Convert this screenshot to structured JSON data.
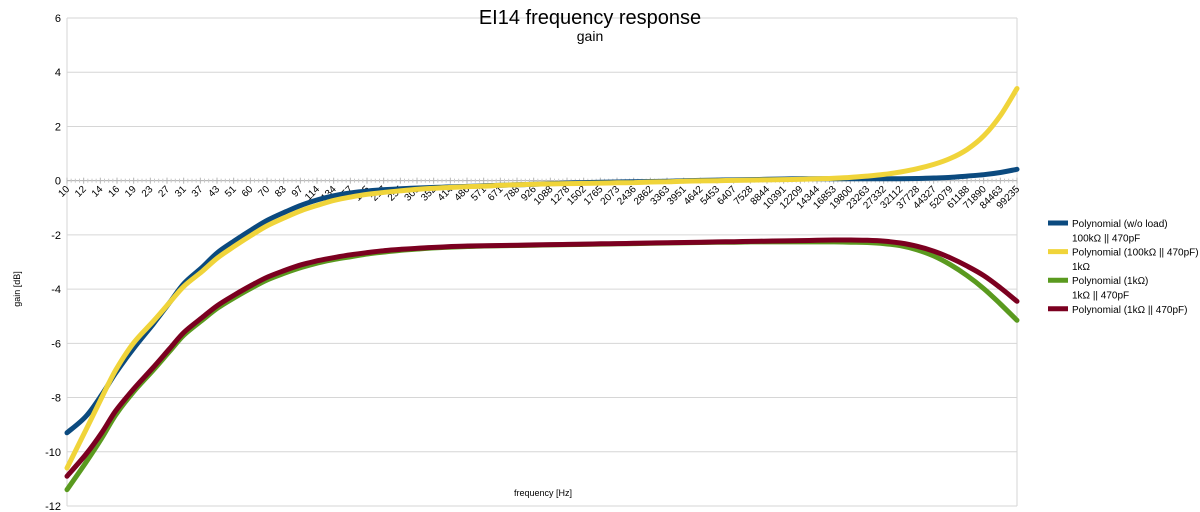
{
  "chart_data": {
    "type": "line",
    "title": "EI14 frequency response",
    "subtitle": "gain",
    "xlabel": "frequency [Hz]",
    "ylabel": "gain [dB]",
    "ylim": [
      -12,
      6
    ],
    "yticks": [
      6,
      4,
      2,
      0,
      -2,
      -4,
      -6,
      -8,
      -10,
      -12
    ],
    "x_scale": "log",
    "grid": true,
    "legend_position": "right",
    "categories": [
      "10",
      "12",
      "14",
      "16",
      "19",
      "23",
      "27",
      "31",
      "37",
      "43",
      "51",
      "60",
      "70",
      "83",
      "97",
      "114",
      "134",
      "157",
      "185",
      "217",
      "255",
      "300",
      "352",
      "414",
      "486",
      "571",
      "671",
      "788",
      "926",
      "1088",
      "1278",
      "1502",
      "1765",
      "2073",
      "2436",
      "2862",
      "3363",
      "3951",
      "4642",
      "5453",
      "6407",
      "7528",
      "8844",
      "10391",
      "12209",
      "14344",
      "16853",
      "19800",
      "23263",
      "27332",
      "32112",
      "37728",
      "44327",
      "52079",
      "61188",
      "71890",
      "84463",
      "99235"
    ],
    "legend": [
      {
        "label": "Polynomial (w/o load)",
        "color": "#0b4a7f",
        "kind": "line"
      },
      {
        "label": "100kΩ || 470pF",
        "color": "",
        "kind": "text"
      },
      {
        "label": "Polynomial (100kΩ || 470pF)",
        "color": "#f0d43a",
        "kind": "line"
      },
      {
        "label": "1kΩ",
        "color": "",
        "kind": "text"
      },
      {
        "label": "Polynomial (1kΩ)",
        "color": "#5a9a1f",
        "kind": "line"
      },
      {
        "label": "1kΩ || 470pF",
        "color": "",
        "kind": "text"
      },
      {
        "label": "Polynomial (1kΩ || 470pF)",
        "color": "#7b0020",
        "kind": "line"
      }
    ],
    "series": [
      {
        "name": "Polynomial (w/o load)",
        "color": "#0b4a7f",
        "points": [
          [
            10,
            -9.3
          ],
          [
            12,
            -8.7
          ],
          [
            14,
            -7.9
          ],
          [
            16,
            -7.1
          ],
          [
            19,
            -6.2
          ],
          [
            23,
            -5.3
          ],
          [
            27,
            -4.5
          ],
          [
            31,
            -3.8
          ],
          [
            37,
            -3.2
          ],
          [
            43,
            -2.65
          ],
          [
            51,
            -2.2
          ],
          [
            60,
            -1.8
          ],
          [
            70,
            -1.45
          ],
          [
            83,
            -1.15
          ],
          [
            97,
            -0.9
          ],
          [
            114,
            -0.7
          ],
          [
            134,
            -0.55
          ],
          [
            157,
            -0.45
          ],
          [
            185,
            -0.38
          ],
          [
            217,
            -0.33
          ],
          [
            255,
            -0.3
          ],
          [
            300,
            -0.27
          ],
          [
            352,
            -0.25
          ],
          [
            414,
            -0.23
          ],
          [
            486,
            -0.21
          ],
          [
            571,
            -0.19
          ],
          [
            671,
            -0.17
          ],
          [
            788,
            -0.15
          ],
          [
            926,
            -0.13
          ],
          [
            1088,
            -0.11
          ],
          [
            1278,
            -0.09
          ],
          [
            1502,
            -0.07
          ],
          [
            1765,
            -0.06
          ],
          [
            2073,
            -0.05
          ],
          [
            2436,
            -0.04
          ],
          [
            2862,
            -0.03
          ],
          [
            3363,
            -0.02
          ],
          [
            3951,
            0.0
          ],
          [
            4642,
            0.01
          ],
          [
            5453,
            0.02
          ],
          [
            6407,
            0.03
          ],
          [
            7528,
            0.04
          ],
          [
            8844,
            0.05
          ],
          [
            10391,
            0.06
          ],
          [
            12209,
            0.07
          ],
          [
            14344,
            0.07
          ],
          [
            16853,
            0.07
          ],
          [
            19800,
            0.07
          ],
          [
            23263,
            0.07
          ],
          [
            27332,
            0.07
          ],
          [
            32112,
            0.07
          ],
          [
            37728,
            0.08
          ],
          [
            44327,
            0.1
          ],
          [
            52079,
            0.12
          ],
          [
            61188,
            0.17
          ],
          [
            71890,
            0.22
          ],
          [
            84463,
            0.3
          ],
          [
            99235,
            0.42
          ]
        ]
      },
      {
        "name": "Polynomial (100kΩ || 470pF)",
        "color": "#f0d43a",
        "points": [
          [
            10,
            -10.6
          ],
          [
            12,
            -9.2
          ],
          [
            14,
            -8.0
          ],
          [
            16,
            -7.0
          ],
          [
            19,
            -6.0
          ],
          [
            23,
            -5.2
          ],
          [
            27,
            -4.5
          ],
          [
            31,
            -3.9
          ],
          [
            37,
            -3.35
          ],
          [
            43,
            -2.85
          ],
          [
            51,
            -2.4
          ],
          [
            60,
            -2.0
          ],
          [
            70,
            -1.65
          ],
          [
            83,
            -1.35
          ],
          [
            97,
            -1.1
          ],
          [
            114,
            -0.9
          ],
          [
            134,
            -0.72
          ],
          [
            157,
            -0.6
          ],
          [
            185,
            -0.5
          ],
          [
            217,
            -0.43
          ],
          [
            255,
            -0.37
          ],
          [
            300,
            -0.32
          ],
          [
            352,
            -0.28
          ],
          [
            414,
            -0.25
          ],
          [
            486,
            -0.22
          ],
          [
            571,
            -0.2
          ],
          [
            671,
            -0.17
          ],
          [
            788,
            -0.15
          ],
          [
            926,
            -0.13
          ],
          [
            1088,
            -0.12
          ],
          [
            1278,
            -0.11
          ],
          [
            1502,
            -0.1
          ],
          [
            1765,
            -0.09
          ],
          [
            2073,
            -0.08
          ],
          [
            2436,
            -0.07
          ],
          [
            2862,
            -0.05
          ],
          [
            3363,
            -0.04
          ],
          [
            3951,
            -0.02
          ],
          [
            4642,
            -0.01
          ],
          [
            5453,
            0.0
          ],
          [
            6407,
            0.01
          ],
          [
            7528,
            0.02
          ],
          [
            8844,
            0.03
          ],
          [
            10391,
            0.04
          ],
          [
            12209,
            0.05
          ],
          [
            14344,
            0.07
          ],
          [
            16853,
            0.09
          ],
          [
            19800,
            0.12
          ],
          [
            23263,
            0.17
          ],
          [
            27332,
            0.23
          ],
          [
            32112,
            0.32
          ],
          [
            37728,
            0.44
          ],
          [
            44327,
            0.6
          ],
          [
            52079,
            0.82
          ],
          [
            61188,
            1.15
          ],
          [
            71890,
            1.65
          ],
          [
            84463,
            2.4
          ],
          [
            99235,
            3.4
          ]
        ]
      },
      {
        "name": "Polynomial (1kΩ)",
        "color": "#5a9a1f",
        "points": [
          [
            10,
            -11.4
          ],
          [
            12,
            -10.4
          ],
          [
            14,
            -9.5
          ],
          [
            16,
            -8.65
          ],
          [
            19,
            -7.8
          ],
          [
            23,
            -7.0
          ],
          [
            27,
            -6.3
          ],
          [
            31,
            -5.7
          ],
          [
            37,
            -5.15
          ],
          [
            43,
            -4.7
          ],
          [
            51,
            -4.3
          ],
          [
            60,
            -3.95
          ],
          [
            70,
            -3.65
          ],
          [
            83,
            -3.4
          ],
          [
            97,
            -3.2
          ],
          [
            114,
            -3.03
          ],
          [
            134,
            -2.9
          ],
          [
            157,
            -2.8
          ],
          [
            185,
            -2.7
          ],
          [
            217,
            -2.63
          ],
          [
            255,
            -2.57
          ],
          [
            300,
            -2.52
          ],
          [
            352,
            -2.48
          ],
          [
            414,
            -2.45
          ],
          [
            486,
            -2.43
          ],
          [
            571,
            -2.41
          ],
          [
            671,
            -2.4
          ],
          [
            788,
            -2.39
          ],
          [
            926,
            -2.38
          ],
          [
            1088,
            -2.37
          ],
          [
            1278,
            -2.36
          ],
          [
            1502,
            -2.35
          ],
          [
            1765,
            -2.34
          ],
          [
            2073,
            -2.33
          ],
          [
            2436,
            -2.32
          ],
          [
            2862,
            -2.31
          ],
          [
            3363,
            -2.3
          ],
          [
            3951,
            -2.29
          ],
          [
            4642,
            -2.28
          ],
          [
            5453,
            -2.27
          ],
          [
            6407,
            -2.27
          ],
          [
            7528,
            -2.26
          ],
          [
            8844,
            -2.26
          ],
          [
            10391,
            -2.26
          ],
          [
            12209,
            -2.26
          ],
          [
            14344,
            -2.26
          ],
          [
            16853,
            -2.26
          ],
          [
            19800,
            -2.27
          ],
          [
            23263,
            -2.28
          ],
          [
            27332,
            -2.32
          ],
          [
            32112,
            -2.4
          ],
          [
            37728,
            -2.55
          ],
          [
            44327,
            -2.78
          ],
          [
            52079,
            -3.1
          ],
          [
            61188,
            -3.5
          ],
          [
            71890,
            -3.98
          ],
          [
            84463,
            -4.55
          ],
          [
            99235,
            -5.15
          ]
        ]
      },
      {
        "name": "Polynomial (1kΩ || 470pF)",
        "color": "#7b0020",
        "points": [
          [
            10,
            -10.9
          ],
          [
            12,
            -10.1
          ],
          [
            14,
            -9.3
          ],
          [
            16,
            -8.5
          ],
          [
            19,
            -7.7
          ],
          [
            23,
            -6.9
          ],
          [
            27,
            -6.2
          ],
          [
            31,
            -5.6
          ],
          [
            37,
            -5.05
          ],
          [
            43,
            -4.6
          ],
          [
            51,
            -4.2
          ],
          [
            60,
            -3.85
          ],
          [
            70,
            -3.55
          ],
          [
            83,
            -3.3
          ],
          [
            97,
            -3.1
          ],
          [
            114,
            -2.95
          ],
          [
            134,
            -2.83
          ],
          [
            157,
            -2.73
          ],
          [
            185,
            -2.65
          ],
          [
            217,
            -2.58
          ],
          [
            255,
            -2.53
          ],
          [
            300,
            -2.49
          ],
          [
            352,
            -2.46
          ],
          [
            414,
            -2.43
          ],
          [
            486,
            -2.41
          ],
          [
            571,
            -2.4
          ],
          [
            671,
            -2.39
          ],
          [
            788,
            -2.38
          ],
          [
            926,
            -2.37
          ],
          [
            1088,
            -2.36
          ],
          [
            1278,
            -2.35
          ],
          [
            1502,
            -2.34
          ],
          [
            1765,
            -2.33
          ],
          [
            2073,
            -2.32
          ],
          [
            2436,
            -2.31
          ],
          [
            2862,
            -2.3
          ],
          [
            3363,
            -2.29
          ],
          [
            3951,
            -2.28
          ],
          [
            4642,
            -2.27
          ],
          [
            5453,
            -2.26
          ],
          [
            6407,
            -2.25
          ],
          [
            7528,
            -2.24
          ],
          [
            8844,
            -2.23
          ],
          [
            10391,
            -2.22
          ],
          [
            12209,
            -2.21
          ],
          [
            14344,
            -2.2
          ],
          [
            16853,
            -2.19
          ],
          [
            19800,
            -2.19
          ],
          [
            23263,
            -2.2
          ],
          [
            27332,
            -2.23
          ],
          [
            32112,
            -2.3
          ],
          [
            37728,
            -2.42
          ],
          [
            44327,
            -2.6
          ],
          [
            52079,
            -2.85
          ],
          [
            61188,
            -3.15
          ],
          [
            71890,
            -3.5
          ],
          [
            84463,
            -3.95
          ],
          [
            99235,
            -4.45
          ]
        ]
      }
    ]
  }
}
